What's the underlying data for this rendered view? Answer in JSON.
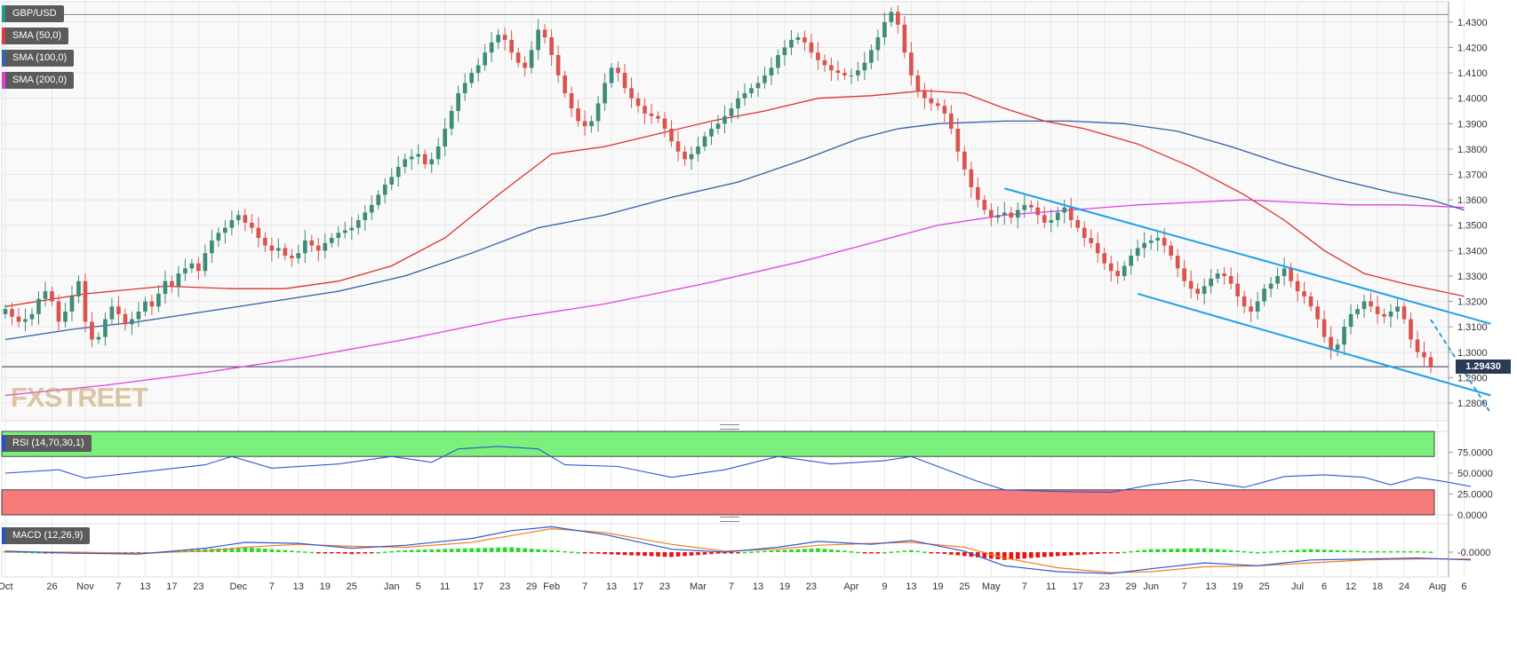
{
  "legends": {
    "main": [
      {
        "label": "GBP/USD",
        "color": "#1e9b8a"
      },
      {
        "label": "SMA (50,0)",
        "color": "#e03b3b"
      },
      {
        "label": "SMA (100,0)",
        "color": "#3366aa"
      },
      {
        "label": "SMA (200,0)",
        "color": "#e040e0"
      }
    ],
    "rsi": {
      "label": "RSI (14,70,30,1)",
      "color": "#2255cc"
    },
    "macd": {
      "label": "MACD (12,26,9)",
      "color": "#2255cc"
    }
  },
  "watermark": "FXSTREET",
  "current_price_label": "1.29430",
  "colors": {
    "up": "#3d8b78",
    "down": "#d9534f",
    "sma50": "#e0302e",
    "sma100": "#2f5fa8",
    "sma200": "#e23fe2",
    "trendline": "#1ea0e8",
    "rsi_line": "#2f55d4",
    "rsi_overbought": "#7cf07c",
    "rsi_oversold": "#f77b7b",
    "macd_line": "#2f55d4",
    "signal_line": "#f08020",
    "hist_up": "#22dd22",
    "hist_down": "#ee1111"
  },
  "chart_data": [
    {
      "type": "candlestick",
      "title": "GBP/USD",
      "ylim": [
        1.273,
        1.438
      ],
      "y_ticks": [
        "1.4300",
        "1.4200",
        "1.4100",
        "1.4000",
        "1.3900",
        "1.3800",
        "1.3700",
        "1.3600",
        "1.3500",
        "1.3400",
        "1.3300",
        "1.3200",
        "1.3100",
        "1.3000",
        "1.2900",
        "1.2800"
      ],
      "x_ticks": [
        {
          "label": "Oct",
          "i": 0
        },
        {
          "label": "26",
          "i": 7
        },
        {
          "label": "Nov",
          "i": 12
        },
        {
          "label": "7",
          "i": 17
        },
        {
          "label": "13",
          "i": 21
        },
        {
          "label": "17",
          "i": 25
        },
        {
          "label": "23",
          "i": 29
        },
        {
          "label": "Dec",
          "i": 35
        },
        {
          "label": "7",
          "i": 40
        },
        {
          "label": "13",
          "i": 44
        },
        {
          "label": "19",
          "i": 48
        },
        {
          "label": "25",
          "i": 52
        },
        {
          "label": "Jan",
          "i": 58
        },
        {
          "label": "5",
          "i": 62
        },
        {
          "label": "11",
          "i": 66
        },
        {
          "label": "17",
          "i": 71
        },
        {
          "label": "23",
          "i": 75
        },
        {
          "label": "29",
          "i": 79
        },
        {
          "label": "Feb",
          "i": 82
        },
        {
          "label": "7",
          "i": 87
        },
        {
          "label": "13",
          "i": 91
        },
        {
          "label": "17",
          "i": 95
        },
        {
          "label": "23",
          "i": 99
        },
        {
          "label": "Mar",
          "i": 104
        },
        {
          "label": "7",
          "i": 109
        },
        {
          "label": "13",
          "i": 113
        },
        {
          "label": "19",
          "i": 117
        },
        {
          "label": "23",
          "i": 121
        },
        {
          "label": "Apr",
          "i": 127
        },
        {
          "label": "9",
          "i": 132
        },
        {
          "label": "13",
          "i": 136
        },
        {
          "label": "19",
          "i": 140
        },
        {
          "label": "25",
          "i": 144
        },
        {
          "label": "May",
          "i": 148
        },
        {
          "label": "7",
          "i": 153
        },
        {
          "label": "11",
          "i": 157
        },
        {
          "label": "17",
          "i": 161
        },
        {
          "label": "23",
          "i": 165
        },
        {
          "label": "29",
          "i": 169
        },
        {
          "label": "Jun",
          "i": 172
        },
        {
          "label": "7",
          "i": 177
        },
        {
          "label": "13",
          "i": 181
        },
        {
          "label": "19",
          "i": 185
        },
        {
          "label": "25",
          "i": 189
        },
        {
          "label": "Jul",
          "i": 194
        },
        {
          "label": "6",
          "i": 198
        },
        {
          "label": "12",
          "i": 202
        },
        {
          "label": "18",
          "i": 206
        },
        {
          "label": "24",
          "i": 210
        },
        {
          "label": "Aug",
          "i": 215
        },
        {
          "label": "6",
          "i": 219
        }
      ],
      "close": [
        1.317,
        1.314,
        1.312,
        1.313,
        1.315,
        1.321,
        1.324,
        1.32,
        1.312,
        1.316,
        1.322,
        1.328,
        1.312,
        1.305,
        1.306,
        1.313,
        1.318,
        1.315,
        1.311,
        1.313,
        1.316,
        1.32,
        1.318,
        1.323,
        1.328,
        1.326,
        1.331,
        1.333,
        1.335,
        1.332,
        1.339,
        1.344,
        1.347,
        1.349,
        1.352,
        1.354,
        1.351,
        1.349,
        1.345,
        1.342,
        1.34,
        1.341,
        1.338,
        1.337,
        1.339,
        1.344,
        1.342,
        1.34,
        1.343,
        1.345,
        1.347,
        1.348,
        1.349,
        1.352,
        1.355,
        1.358,
        1.362,
        1.366,
        1.369,
        1.373,
        1.376,
        1.377,
        1.378,
        1.374,
        1.376,
        1.381,
        1.388,
        1.395,
        1.402,
        1.406,
        1.41,
        1.413,
        1.418,
        1.422,
        1.425,
        1.423,
        1.418,
        1.414,
        1.412,
        1.419,
        1.427,
        1.424,
        1.417,
        1.409,
        1.402,
        1.396,
        1.391,
        1.389,
        1.391,
        1.398,
        1.406,
        1.412,
        1.41,
        1.404,
        1.4,
        1.397,
        1.394,
        1.393,
        1.392,
        1.388,
        1.383,
        1.379,
        1.376,
        1.378,
        1.381,
        1.385,
        1.388,
        1.39,
        1.393,
        1.396,
        1.4,
        1.402,
        1.404,
        1.406,
        1.409,
        1.412,
        1.417,
        1.42,
        1.423,
        1.424,
        1.422,
        1.418,
        1.415,
        1.413,
        1.411,
        1.41,
        1.409,
        1.409,
        1.411,
        1.414,
        1.419,
        1.424,
        1.43,
        1.434,
        1.429,
        1.418,
        1.409,
        1.403,
        1.4,
        1.398,
        1.397,
        1.394,
        1.388,
        1.379,
        1.372,
        1.365,
        1.36,
        1.356,
        1.353,
        1.354,
        1.355,
        1.353,
        1.356,
        1.358,
        1.357,
        1.354,
        1.351,
        1.352,
        1.355,
        1.357,
        1.352,
        1.349,
        1.345,
        1.343,
        1.339,
        1.335,
        1.332,
        1.33,
        1.334,
        1.338,
        1.341,
        1.343,
        1.344,
        1.345,
        1.342,
        1.338,
        1.333,
        1.328,
        1.325,
        1.323,
        1.326,
        1.329,
        1.331,
        1.33,
        1.327,
        1.322,
        1.318,
        1.316,
        1.32,
        1.325,
        1.327,
        1.33,
        1.333,
        1.328,
        1.324,
        1.322,
        1.318,
        1.313,
        1.306,
        1.301,
        1.303,
        1.31,
        1.315,
        1.317,
        1.32,
        1.318,
        1.315,
        1.314,
        1.316,
        1.318,
        1.313,
        1.305,
        1.3,
        1.298,
        1.2943
      ],
      "sma50": [
        [
          0,
          1.318
        ],
        [
          12,
          1.323
        ],
        [
          24,
          1.326
        ],
        [
          34,
          1.325
        ],
        [
          42,
          1.325
        ],
        [
          50,
          1.328
        ],
        [
          58,
          1.334
        ],
        [
          66,
          1.345
        ],
        [
          74,
          1.362
        ],
        [
          82,
          1.378
        ],
        [
          90,
          1.381
        ],
        [
          98,
          1.386
        ],
        [
          106,
          1.391
        ],
        [
          114,
          1.395
        ],
        [
          122,
          1.4
        ],
        [
          130,
          1.401
        ],
        [
          138,
          1.403
        ],
        [
          144,
          1.402
        ],
        [
          150,
          1.396
        ],
        [
          156,
          1.391
        ],
        [
          162,
          1.388
        ],
        [
          170,
          1.382
        ],
        [
          178,
          1.373
        ],
        [
          186,
          1.362
        ],
        [
          192,
          1.352
        ],
        [
          198,
          1.34
        ],
        [
          204,
          1.331
        ],
        [
          210,
          1.327
        ],
        [
          219,
          1.322
        ]
      ],
      "sma100": [
        [
          0,
          1.305
        ],
        [
          10,
          1.309
        ],
        [
          20,
          1.312
        ],
        [
          30,
          1.316
        ],
        [
          40,
          1.32
        ],
        [
          50,
          1.324
        ],
        [
          60,
          1.33
        ],
        [
          70,
          1.339
        ],
        [
          80,
          1.349
        ],
        [
          90,
          1.354
        ],
        [
          100,
          1.361
        ],
        [
          110,
          1.367
        ],
        [
          120,
          1.376
        ],
        [
          128,
          1.384
        ],
        [
          134,
          1.388
        ],
        [
          140,
          1.39
        ],
        [
          150,
          1.391
        ],
        [
          160,
          1.391
        ],
        [
          168,
          1.39
        ],
        [
          176,
          1.387
        ],
        [
          184,
          1.381
        ],
        [
          192,
          1.374
        ],
        [
          200,
          1.368
        ],
        [
          208,
          1.363
        ],
        [
          214,
          1.36
        ],
        [
          219,
          1.356
        ]
      ],
      "sma200": [
        [
          0,
          1.283
        ],
        [
          15,
          1.287
        ],
        [
          30,
          1.292
        ],
        [
          45,
          1.298
        ],
        [
          60,
          1.305
        ],
        [
          75,
          1.313
        ],
        [
          90,
          1.319
        ],
        [
          105,
          1.327
        ],
        [
          120,
          1.336
        ],
        [
          130,
          1.343
        ],
        [
          140,
          1.35
        ],
        [
          150,
          1.354
        ],
        [
          160,
          1.356
        ],
        [
          170,
          1.358
        ],
        [
          178,
          1.359
        ],
        [
          186,
          1.36
        ],
        [
          194,
          1.359
        ],
        [
          202,
          1.358
        ],
        [
          210,
          1.358
        ],
        [
          219,
          1.357
        ]
      ],
      "trendlines": [
        {
          "style": "solid",
          "from": [
            150,
            1.3645
          ],
          "to": [
            223,
            1.3112
          ]
        },
        {
          "style": "solid",
          "from": [
            170,
            1.323
          ],
          "to": [
            223,
            1.283
          ]
        },
        {
          "style": "dashed",
          "from": [
            214,
            1.3128
          ],
          "to": [
            223,
            1.276
          ]
        }
      ]
    },
    {
      "type": "line",
      "title": "RSI (14,70,30,1)",
      "ylim": [
        0,
        100
      ],
      "y_ticks": [
        "75.0000",
        "50.0000",
        "25.0000",
        "0.0000"
      ],
      "bands": {
        "overbought": 70,
        "oversold": 30
      },
      "values": [
        [
          0,
          50
        ],
        [
          8,
          54
        ],
        [
          12,
          44
        ],
        [
          20,
          51
        ],
        [
          30,
          60
        ],
        [
          34,
          70
        ],
        [
          40,
          56
        ],
        [
          50,
          61
        ],
        [
          58,
          70
        ],
        [
          64,
          63
        ],
        [
          68,
          79
        ],
        [
          74,
          82
        ],
        [
          80,
          79
        ],
        [
          84,
          60
        ],
        [
          92,
          58
        ],
        [
          100,
          45
        ],
        [
          108,
          54
        ],
        [
          116,
          70
        ],
        [
          124,
          61
        ],
        [
          132,
          65
        ],
        [
          136,
          70
        ],
        [
          142,
          52
        ],
        [
          146,
          40
        ],
        [
          150,
          30
        ],
        [
          158,
          28
        ],
        [
          166,
          27
        ],
        [
          172,
          36
        ],
        [
          178,
          42
        ],
        [
          186,
          33
        ],
        [
          192,
          46
        ],
        [
          198,
          48
        ],
        [
          204,
          45
        ],
        [
          208,
          36
        ],
        [
          212,
          45
        ],
        [
          216,
          40
        ],
        [
          220,
          34
        ]
      ]
    },
    {
      "type": "line",
      "title": "MACD (12,26,9)",
      "y_ticks": [
        "-0.0000"
      ],
      "macd": [
        [
          0,
          0.001
        ],
        [
          10,
          -0.001
        ],
        [
          20,
          -0.002
        ],
        [
          30,
          0.004
        ],
        [
          36,
          0.01
        ],
        [
          44,
          0.009
        ],
        [
          52,
          0.004
        ],
        [
          60,
          0.007
        ],
        [
          70,
          0.014
        ],
        [
          76,
          0.022
        ],
        [
          82,
          0.026
        ],
        [
          90,
          0.018
        ],
        [
          100,
          0.003
        ],
        [
          108,
          0.0
        ],
        [
          116,
          0.005
        ],
        [
          122,
          0.011
        ],
        [
          130,
          0.008
        ],
        [
          136,
          0.012
        ],
        [
          144,
          0.001
        ],
        [
          150,
          -0.014
        ],
        [
          158,
          -0.02
        ],
        [
          166,
          -0.022
        ],
        [
          172,
          -0.017
        ],
        [
          180,
          -0.011
        ],
        [
          188,
          -0.014
        ],
        [
          196,
          -0.008
        ],
        [
          204,
          -0.007
        ],
        [
          212,
          -0.006
        ],
        [
          220,
          -0.008
        ]
      ],
      "signal": [
        [
          0,
          0.0
        ],
        [
          10,
          0.0
        ],
        [
          20,
          -0.001
        ],
        [
          30,
          0.001
        ],
        [
          36,
          0.005
        ],
        [
          44,
          0.008
        ],
        [
          52,
          0.006
        ],
        [
          60,
          0.005
        ],
        [
          70,
          0.01
        ],
        [
          76,
          0.017
        ],
        [
          82,
          0.024
        ],
        [
          90,
          0.02
        ],
        [
          100,
          0.008
        ],
        [
          108,
          0.001
        ],
        [
          116,
          0.003
        ],
        [
          122,
          0.007
        ],
        [
          130,
          0.009
        ],
        [
          136,
          0.01
        ],
        [
          144,
          0.005
        ],
        [
          150,
          -0.006
        ],
        [
          158,
          -0.016
        ],
        [
          166,
          -0.021
        ],
        [
          172,
          -0.02
        ],
        [
          180,
          -0.015
        ],
        [
          188,
          -0.014
        ],
        [
          196,
          -0.011
        ],
        [
          204,
          -0.008
        ],
        [
          212,
          -0.007
        ],
        [
          220,
          -0.007
        ]
      ]
    }
  ]
}
